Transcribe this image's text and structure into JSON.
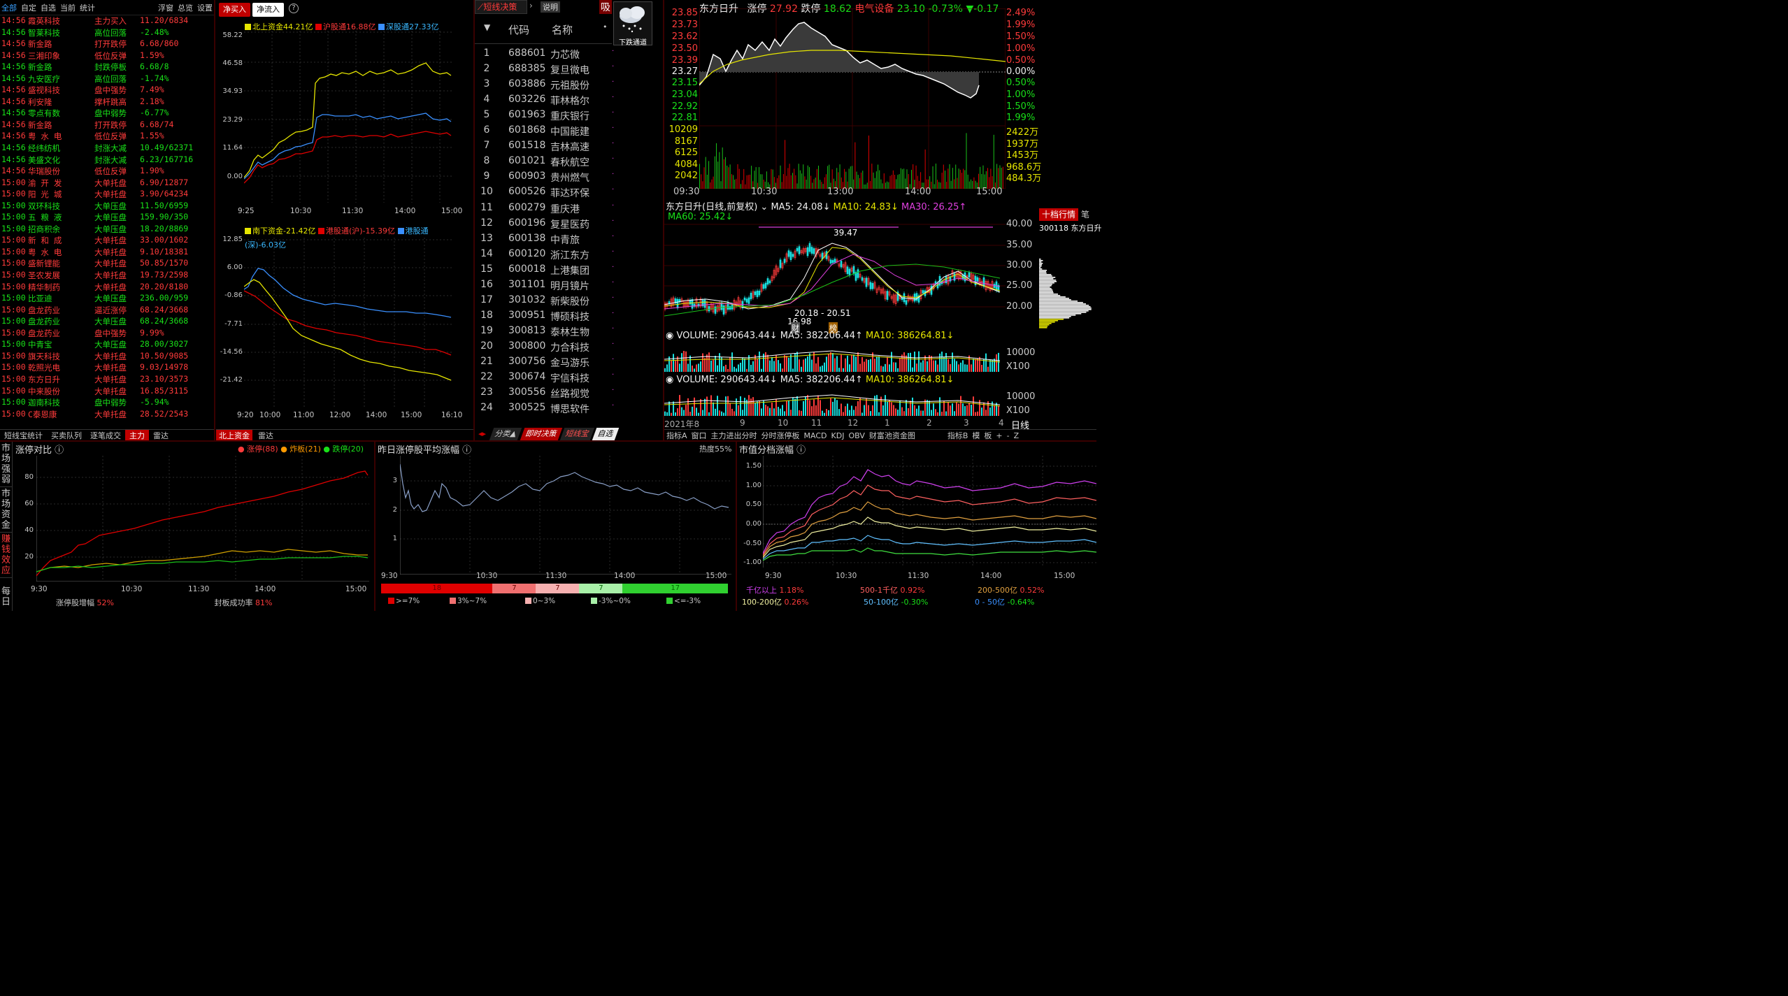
{
  "feed": {
    "tabs": [
      "全部",
      "自定",
      "自选",
      "当前",
      "统计",
      "浮窗",
      "总览",
      "设置"
    ],
    "rows": [
      [
        "14:56",
        "霞英科技",
        "主力买入",
        "11.20/6834",
        "red"
      ],
      [
        "14:56",
        "智莱科技",
        "高位回落",
        "-2.48%",
        "grn"
      ],
      [
        "14:56",
        "新金路",
        "打开跌停",
        "6.68/860",
        "red"
      ],
      [
        "14:56",
        "三湘印象",
        "低位反弹",
        "1.59%",
        "red"
      ],
      [
        "14:56",
        "新金路",
        "封跌停板",
        "6.68/8",
        "grn"
      ],
      [
        "14:56",
        "九安医疗",
        "高位回落",
        "-1.74%",
        "grn"
      ],
      [
        "14:56",
        "盛视科技",
        "盘中强势",
        "7.49%",
        "red"
      ],
      [
        "14:56",
        "利安隆",
        "撑杆跳高",
        "2.18%",
        "red"
      ],
      [
        "14:56",
        "零点有数",
        "盘中弱势",
        "-6.77%",
        "grn"
      ],
      [
        "14:56",
        "新金路",
        "打开跌停",
        "6.68/74",
        "red"
      ],
      [
        "14:56",
        "粤 水 电",
        "低位反弹",
        "1.55%",
        "red"
      ],
      [
        "14:56",
        "经纬纺机",
        "封涨大减",
        "10.49/62371",
        "grn"
      ],
      [
        "14:56",
        "美盛文化",
        "封涨大减",
        "6.23/167716",
        "grn"
      ],
      [
        "14:56",
        "华瑞股份",
        "低位反弹",
        "1.90%",
        "red"
      ],
      [
        "15:00",
        "渝 开 发",
        "大单托盘",
        "6.90/12877",
        "red"
      ],
      [
        "15:00",
        "阳 光 城",
        "大单托盘",
        "3.90/64234",
        "red"
      ],
      [
        "15:00",
        "双环科技",
        "大单压盘",
        "11.50/6959",
        "grn"
      ],
      [
        "15:00",
        "五 粮 液",
        "大单压盘",
        "159.90/350",
        "grn"
      ],
      [
        "15:00",
        "招商积余",
        "大单压盘",
        "18.20/8869",
        "grn"
      ],
      [
        "15:00",
        "新 和 成",
        "大单托盘",
        "33.00/1602",
        "red"
      ],
      [
        "15:00",
        "粤 水 电",
        "大单托盘",
        "9.10/18381",
        "red"
      ],
      [
        "15:00",
        "盛新锂能",
        "大单托盘",
        "50.85/1570",
        "red"
      ],
      [
        "15:00",
        "圣农发展",
        "大单托盘",
        "19.73/2598",
        "red"
      ],
      [
        "15:00",
        "精华制药",
        "大单托盘",
        "20.20/8180",
        "red"
      ],
      [
        "15:00",
        "比亚迪",
        "大单压盘",
        "236.00/959",
        "grn"
      ],
      [
        "15:00",
        "盘龙药业",
        "逼近涨停",
        "68.24/3668",
        "red"
      ],
      [
        "15:00",
        "盘龙药业",
        "大单压盘",
        "68.24/3668",
        "grn"
      ],
      [
        "15:00",
        "盘龙药业",
        "盘中强势",
        "9.99%",
        "red"
      ],
      [
        "15:00",
        "中青宝",
        "大单压盘",
        "28.00/3027",
        "grn"
      ],
      [
        "15:00",
        "旗天科技",
        "大单托盘",
        "10.50/9085",
        "red"
      ],
      [
        "15:00",
        "乾照光电",
        "大单托盘",
        "9.03/14978",
        "red"
      ],
      [
        "15:00",
        "东方日升",
        "大单托盘",
        "23.10/3573",
        "red"
      ],
      [
        "15:00",
        "中来股份",
        "大单托盘",
        "16.85/3115",
        "red"
      ],
      [
        "15:00",
        "迦南科技",
        "盘中弱势",
        "-5.94%",
        "grn"
      ],
      [
        "15:00",
        "C泰恩康",
        "大单托盘",
        "28.52/2543",
        "red"
      ]
    ],
    "bottom_tabs": [
      "短线宝统计",
      "买卖队列",
      "逐笔成交",
      "主力",
      "雷达"
    ]
  },
  "flow": {
    "buttons": [
      "净买入",
      "净流入"
    ],
    "north": {
      "legend": [
        "北上资金44.21亿",
        "沪股通16.88亿",
        "深股通27.33亿"
      ],
      "y_ticks": [
        "58.22",
        "46.58",
        "34.93",
        "23.29",
        "11.64",
        "0.00"
      ],
      "x_ticks": [
        "9:25",
        "10:30",
        "11:30",
        "14:00",
        "15:00"
      ]
    },
    "south": {
      "legend": [
        "南下资金-21.42亿",
        "港股通(沪)-15.39亿",
        "港股通",
        "(深)-6.03亿"
      ],
      "y_ticks": [
        "12.85",
        "6.00",
        "-0.86",
        "-7.71",
        "-14.56",
        "-21.42"
      ],
      "x_ticks": [
        "9:20",
        "10:00",
        "11:00",
        "12:00",
        "14:00",
        "15:00",
        "16:10"
      ]
    },
    "bottom_tabs": [
      "北上资金",
      "雷达"
    ]
  },
  "list": {
    "title": "短线决策",
    "help": "说明",
    "side": "吸",
    "weather": "下跌通道",
    "headers": [
      "代码",
      "名称"
    ],
    "rows": [
      [
        "1",
        "688601",
        "力芯微"
      ],
      [
        "2",
        "688385",
        "复旦微电"
      ],
      [
        "3",
        "603886",
        "元祖股份"
      ],
      [
        "4",
        "603226",
        "菲林格尔"
      ],
      [
        "5",
        "601963",
        "重庆银行"
      ],
      [
        "6",
        "601868",
        "中国能建"
      ],
      [
        "7",
        "601518",
        "吉林高速"
      ],
      [
        "8",
        "601021",
        "春秋航空"
      ],
      [
        "9",
        "600903",
        "贵州燃气"
      ],
      [
        "10",
        "600526",
        "菲达环保"
      ],
      [
        "11",
        "600279",
        "重庆港"
      ],
      [
        "12",
        "600196",
        "复星医药"
      ],
      [
        "13",
        "600138",
        "中青旅"
      ],
      [
        "14",
        "600120",
        "浙江东方"
      ],
      [
        "15",
        "600018",
        "上港集团"
      ],
      [
        "16",
        "301101",
        "明月镜片"
      ],
      [
        "17",
        "301032",
        "新柴股份"
      ],
      [
        "18",
        "300951",
        "博硕科技"
      ],
      [
        "19",
        "300813",
        "泰林生物"
      ],
      [
        "20",
        "300800",
        "力合科技"
      ],
      [
        "21",
        "300756",
        "金马游乐"
      ],
      [
        "22",
        "300674",
        "宇信科技"
      ],
      [
        "23",
        "300556",
        "丝路视觉"
      ],
      [
        "24",
        "300525",
        "博思软件"
      ]
    ],
    "bottom_tabs": [
      "分类▲",
      "即时决策",
      "短线宝",
      "自选"
    ]
  },
  "stock": {
    "name": "东方日升",
    "header": [
      "涨停",
      "27.92",
      "跌停",
      "18.62",
      "电气设备",
      "23.10",
      "-0.73%",
      "▼-0.17"
    ],
    "price_left": [
      "23.85",
      "23.73",
      "23.62",
      "23.50",
      "23.39",
      "23.27",
      "23.15",
      "23.04",
      "22.92",
      "22.81"
    ],
    "price_right": [
      "2.49%",
      "1.99%",
      "1.50%",
      "1.00%",
      "0.50%",
      "0.00%",
      "0.50%",
      "1.00%",
      "1.50%",
      "1.99%"
    ],
    "vol_left": [
      "10209",
      "8167",
      "6125",
      "4084",
      "2042"
    ],
    "vol_right": [
      "2422万",
      "1937万",
      "1453万",
      "968.6万",
      "484.3万"
    ],
    "time_ticks": [
      "09:30",
      "10:30",
      "13:00",
      "14:00",
      "15:00"
    ],
    "kline_title": "东方日升(日线,前复权)",
    "ma": [
      "MA5: 24.08↓",
      "MA10: 24.83↓",
      "MA30: 26.25↑",
      "MA60: 25.42↓"
    ],
    "k_right": [
      "40.00",
      "35.00",
      "30.00",
      "25.00",
      "20.00"
    ],
    "k_notes": [
      "39.47",
      "20.18 - 20.51",
      "16.98",
      "财",
      "榜"
    ],
    "vol_lines": [
      [
        "VOLUME: 290643.44↓",
        "MA5: 382206.44↑",
        "MA10: 386264.81↓"
      ],
      [
        "VOLUME: 290643.44↓",
        "MA5: 382206.44↑",
        "MA10: 386264.81↓"
      ]
    ],
    "vol_ticks": [
      "10000",
      "X100"
    ],
    "date_ticks": [
      "2021年8",
      "9",
      "10",
      "11",
      "12",
      "1",
      "2",
      "3",
      "4"
    ],
    "period": "日线",
    "bottom_tabs": [
      "指标A",
      "窗口",
      "主力进出分时",
      "分时涨停板",
      "MACD",
      "KDJ",
      "OBV",
      "财富池资金图",
      "指标B",
      "模",
      "板",
      "+",
      "-",
      "Z"
    ],
    "side_tabs": [
      "十档行情",
      "笔"
    ],
    "side_code": "300118 东方日升"
  },
  "bottom": {
    "left": {
      "vtabs": [
        "市场强弱",
        "市场资金",
        "赚钱效应",
        "每日"
      ],
      "title": "涨停对比",
      "legend": [
        "涨停(88)",
        "炸板(21)",
        "跌停(20)"
      ],
      "y_ticks": [
        "80",
        "60",
        "40",
        "20"
      ],
      "x_ticks": [
        "9:30",
        "10:30",
        "11:30",
        "14:00",
        "15:00"
      ],
      "footer": [
        "涨停股增幅",
        "52%",
        "封板成功率",
        "81%"
      ]
    },
    "mid": {
      "title": "昨日涨停股平均涨幅",
      "heat": "热度55%",
      "y_ticks": [
        "3",
        "2",
        "1"
      ],
      "x_ticks": [
        "9:30",
        "10:30",
        "11:30",
        "14:00",
        "15:00"
      ],
      "bar_values": [
        "18",
        "7",
        "7",
        "7",
        "17"
      ],
      "bar_legend": [
        ">=7%",
        "3%~7%",
        "0~3%",
        "-3%~0%",
        "<=-3%"
      ]
    },
    "right": {
      "title": "市值分档涨幅",
      "y_ticks": [
        "1.50",
        "1.00",
        "0.50",
        "0.00",
        "-0.50",
        "-1.00"
      ],
      "x_ticks": [
        "9:30",
        "10:30",
        "11:30",
        "14:00",
        "15:00"
      ],
      "legend": [
        [
          "千亿以上",
          "1.18%"
        ],
        [
          "500-1千亿",
          "0.92%"
        ],
        [
          "200-500亿",
          "0.52%"
        ],
        [
          "100-200亿",
          "0.26%"
        ],
        [
          "50-100亿",
          "-0.30%"
        ],
        [
          "0 - 50亿",
          "-0.64%"
        ]
      ]
    }
  },
  "colors": {
    "red": "#ff3b3b",
    "green": "#19e019",
    "yellow": "#e6e600",
    "blue": "#3a90ff",
    "magenta": "#e040e0",
    "panel_border": "#3a0000"
  }
}
